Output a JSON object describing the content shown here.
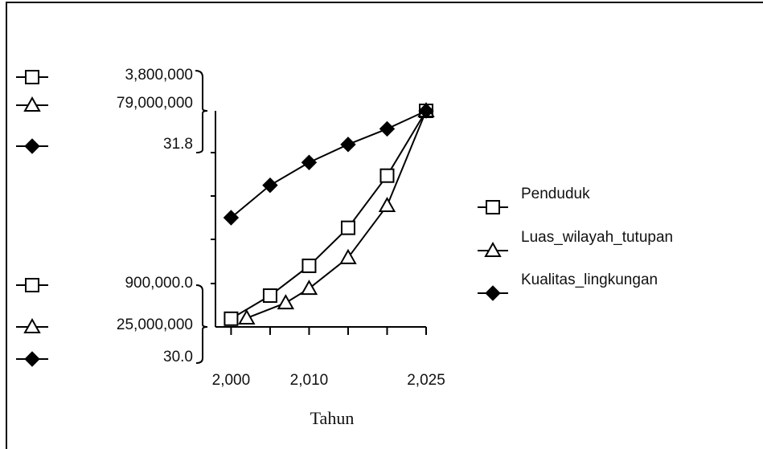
{
  "chart_data": {
    "type": "line",
    "x_label": "Tahun",
    "xlim": [
      1998,
      2025
    ],
    "xticks": [
      {
        "value": 2000,
        "label": "2,000"
      },
      {
        "value": 2010,
        "label": "2,010"
      },
      {
        "value": 2025,
        "label": "2,025"
      }
    ],
    "xminorticks": [
      2005,
      2015,
      2020
    ],
    "series": [
      {
        "name": "Penduduk",
        "marker": "square",
        "color": "#000000",
        "ylim": [
          {
            "value": 900000,
            "label": "900,000.0"
          },
          {
            "value": 3800000,
            "label": "3,800,000"
          }
        ],
        "x": [
          2000,
          2005,
          2010,
          2015,
          2020,
          2025
        ],
        "values": [
          1010000,
          1320000,
          1720000,
          2230000,
          2930000,
          3800000
        ]
      },
      {
        "name": "Luas_wilayah_tutupan",
        "marker": "triangle",
        "color": "#000000",
        "ylim": [
          {
            "value": 25000000,
            "label": "25,000,000"
          },
          {
            "value": 79000000,
            "label": "79,000,000"
          }
        ],
        "x": [
          2002,
          2007,
          2010,
          2015,
          2020,
          2025
        ],
        "values": [
          27200000,
          31000000,
          34600000,
          42300000,
          55300000,
          79000000
        ]
      },
      {
        "name": "Kualitas_lingkungan",
        "marker": "diamond",
        "color": "#000000",
        "ylim": [
          {
            "value": 30.0,
            "label": "30.0"
          },
          {
            "value": 31.8,
            "label": "31.8"
          }
        ],
        "x": [
          2000,
          2005,
          2010,
          2015,
          2020,
          2025
        ],
        "values": [
          30.91,
          31.18,
          31.37,
          31.52,
          31.65,
          31.8
        ]
      }
    ]
  }
}
